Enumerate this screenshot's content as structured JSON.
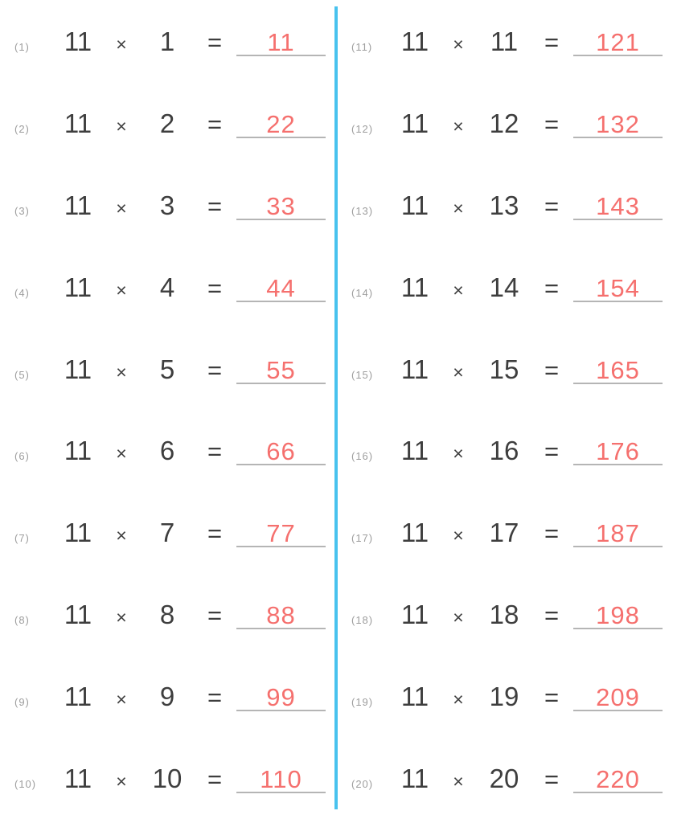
{
  "page": {
    "background": "#ffffff",
    "divider_color": "#48C2EE",
    "text_color": "#3E3E3E",
    "label_color": "#9D9D9D",
    "answer_color": "#F5706E",
    "underline_color": "#B5B5B5"
  },
  "worksheet": {
    "operator": "×",
    "equals": "=",
    "columns": [
      {
        "side": "left",
        "problems": [
          {
            "label": "(1)",
            "multiplicand": "11",
            "multiplier": "1",
            "answer": "11"
          },
          {
            "label": "(2)",
            "multiplicand": "11",
            "multiplier": "2",
            "answer": "22"
          },
          {
            "label": "(3)",
            "multiplicand": "11",
            "multiplier": "3",
            "answer": "33"
          },
          {
            "label": "(4)",
            "multiplicand": "11",
            "multiplier": "4",
            "answer": "44"
          },
          {
            "label": "(5)",
            "multiplicand": "11",
            "multiplier": "5",
            "answer": "55"
          },
          {
            "label": "(6)",
            "multiplicand": "11",
            "multiplier": "6",
            "answer": "66"
          },
          {
            "label": "(7)",
            "multiplicand": "11",
            "multiplier": "7",
            "answer": "77"
          },
          {
            "label": "(8)",
            "multiplicand": "11",
            "multiplier": "8",
            "answer": "88"
          },
          {
            "label": "(9)",
            "multiplicand": "11",
            "multiplier": "9",
            "answer": "99"
          },
          {
            "label": "(10)",
            "multiplicand": "11",
            "multiplier": "10",
            "answer": "110"
          }
        ]
      },
      {
        "side": "right",
        "problems": [
          {
            "label": "(11)",
            "multiplicand": "11",
            "multiplier": "11",
            "answer": "121"
          },
          {
            "label": "(12)",
            "multiplicand": "11",
            "multiplier": "12",
            "answer": "132"
          },
          {
            "label": "(13)",
            "multiplicand": "11",
            "multiplier": "13",
            "answer": "143"
          },
          {
            "label": "(14)",
            "multiplicand": "11",
            "multiplier": "14",
            "answer": "154"
          },
          {
            "label": "(15)",
            "multiplicand": "11",
            "multiplier": "15",
            "answer": "165"
          },
          {
            "label": "(16)",
            "multiplicand": "11",
            "multiplier": "16",
            "answer": "176"
          },
          {
            "label": "(17)",
            "multiplicand": "11",
            "multiplier": "17",
            "answer": "187"
          },
          {
            "label": "(18)",
            "multiplicand": "11",
            "multiplier": "18",
            "answer": "198"
          },
          {
            "label": "(19)",
            "multiplicand": "11",
            "multiplier": "19",
            "answer": "209"
          },
          {
            "label": "(20)",
            "multiplicand": "11",
            "multiplier": "20",
            "answer": "220"
          }
        ]
      }
    ]
  }
}
